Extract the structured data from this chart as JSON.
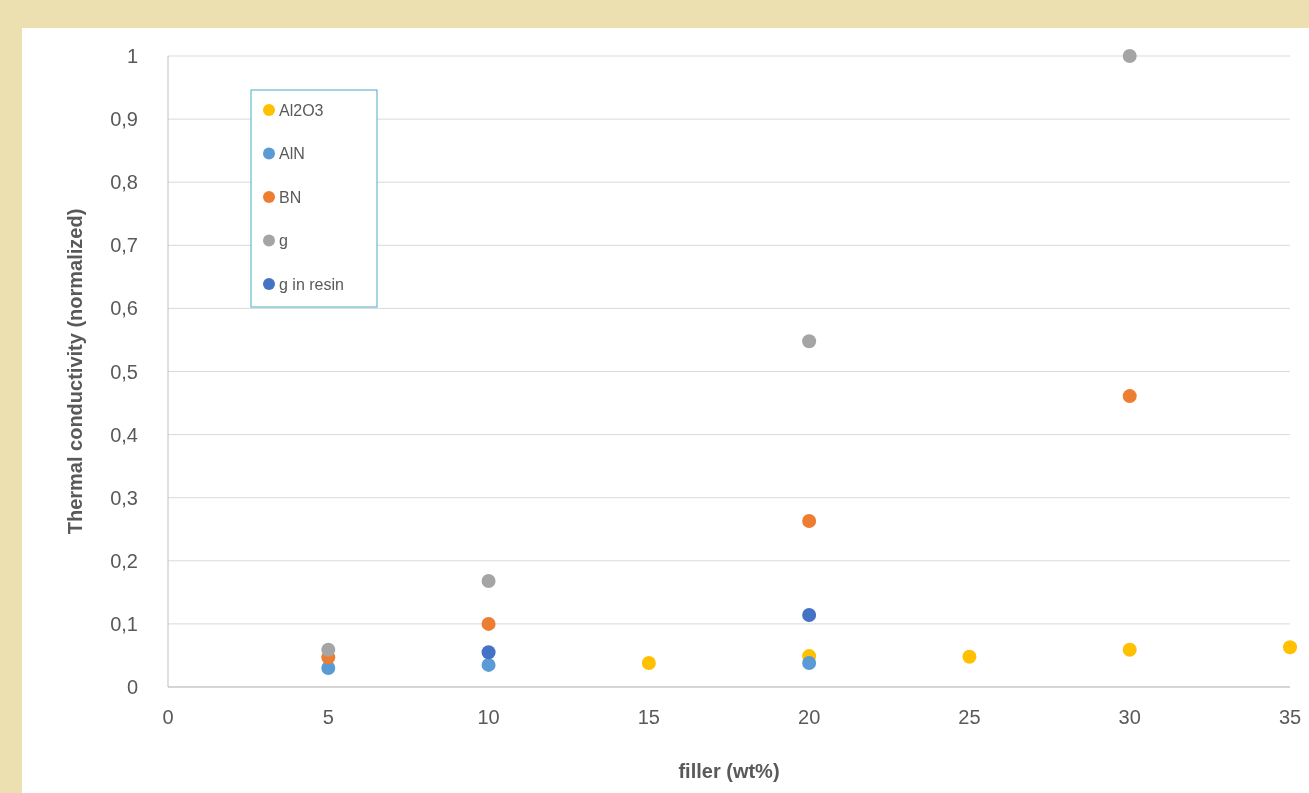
{
  "chart_data": {
    "type": "scatter",
    "xlabel": "filler (wt%)",
    "ylabel": "Thermal conductivity (normalized)",
    "x": [
      5,
      10,
      15,
      20,
      25,
      30,
      35
    ],
    "series": [
      {
        "name": "Al2O3",
        "color": "#ffc000",
        "values": [
          null,
          null,
          0.038,
          0.049,
          0.048,
          0.059,
          0.063
        ]
      },
      {
        "name": "AlN",
        "color": "#5b9bd5",
        "values": [
          0.03,
          0.035,
          null,
          0.038,
          null,
          null,
          null
        ]
      },
      {
        "name": "BN",
        "color": "#ed7d31",
        "values": [
          0.047,
          0.1,
          null,
          0.263,
          null,
          0.461,
          null
        ]
      },
      {
        "name": "g",
        "color": "#a5a5a5",
        "values": [
          0.059,
          0.168,
          null,
          0.548,
          null,
          1.0,
          null
        ]
      },
      {
        "name": "g in resin",
        "color": "#4472c4",
        "values": [
          null,
          0.055,
          null,
          0.114,
          null,
          null,
          null
        ]
      }
    ],
    "xlim": [
      0,
      35
    ],
    "xticks": [
      0,
      5,
      10,
      15,
      20,
      25,
      30,
      35
    ],
    "ylim": [
      0,
      1
    ],
    "yticks": [
      {
        "value": 0,
        "label": "0"
      },
      {
        "value": 0.1,
        "label": "0,1"
      },
      {
        "value": 0.2,
        "label": "0,2"
      },
      {
        "value": 0.3,
        "label": "0,3"
      },
      {
        "value": 0.4,
        "label": "0,4"
      },
      {
        "value": 0.5,
        "label": "0,5"
      },
      {
        "value": 0.6,
        "label": "0,6"
      },
      {
        "value": 0.7,
        "label": "0,7"
      },
      {
        "value": 0.8,
        "label": "0,8"
      },
      {
        "value": 0.9,
        "label": "0,9"
      },
      {
        "value": 1,
        "label": "1"
      }
    ],
    "grid": "y",
    "legend": "top left",
    "marker": "circle"
  }
}
